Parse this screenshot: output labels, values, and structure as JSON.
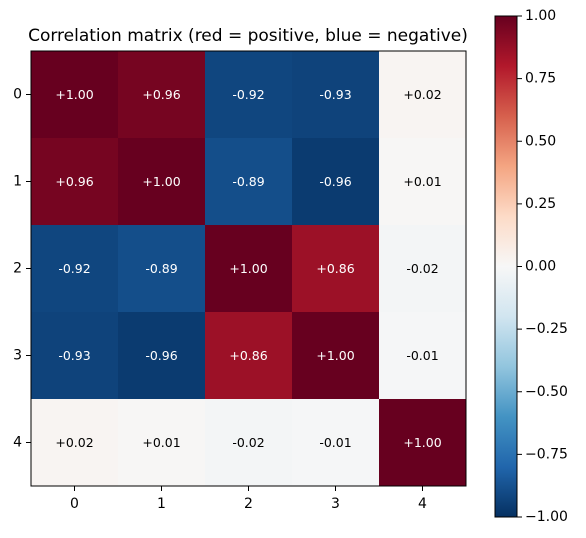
{
  "chart_data": {
    "type": "heatmap",
    "title": "Correlation matrix (red = positive, blue = negative)",
    "x_categories": [
      "0",
      "1",
      "2",
      "3",
      "4"
    ],
    "y_categories": [
      "0",
      "1",
      "2",
      "3",
      "4"
    ],
    "values": [
      [
        1.0,
        0.96,
        -0.92,
        -0.93,
        0.02
      ],
      [
        0.96,
        1.0,
        -0.89,
        -0.96,
        0.01
      ],
      [
        -0.92,
        -0.89,
        1.0,
        0.86,
        -0.02
      ],
      [
        -0.93,
        -0.96,
        0.86,
        1.0,
        -0.01
      ],
      [
        0.02,
        0.01,
        -0.02,
        -0.01,
        1.0
      ]
    ],
    "labels": [
      [
        "+1.00",
        "+0.96",
        "-0.92",
        "-0.93",
        "+0.02"
      ],
      [
        "+0.96",
        "+1.00",
        "-0.89",
        "-0.96",
        "+0.01"
      ],
      [
        "-0.92",
        "-0.89",
        "+1.00",
        "+0.86",
        "-0.02"
      ],
      [
        "-0.93",
        "-0.96",
        "+0.86",
        "+1.00",
        "-0.01"
      ],
      [
        "+0.02",
        "+0.01",
        "-0.02",
        "-0.01",
        "+1.00"
      ]
    ],
    "colorbar": {
      "range": [
        -1.0,
        1.0
      ],
      "ticks": [
        1.0,
        0.75,
        0.5,
        0.25,
        0.0,
        -0.25,
        -0.5,
        -0.75,
        -1.0
      ],
      "tick_labels": [
        "1.00",
        "0.75",
        "0.50",
        "0.25",
        "0.00",
        "−0.25",
        "−0.50",
        "−0.75",
        "−1.00"
      ],
      "colormap": "RdBu_r"
    }
  }
}
